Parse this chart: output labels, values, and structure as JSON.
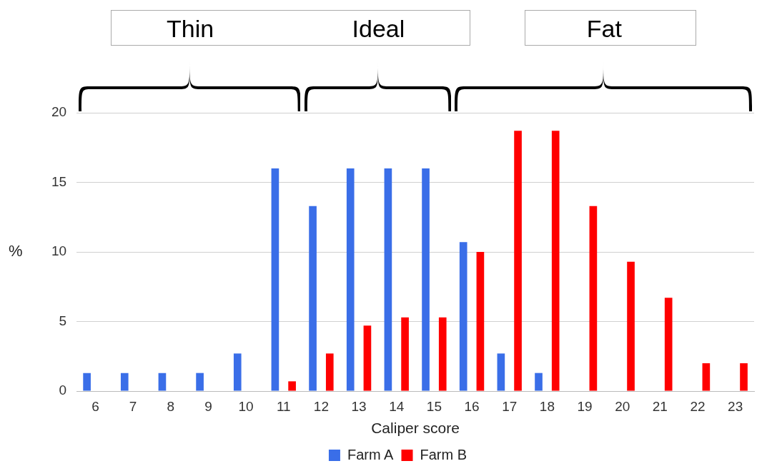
{
  "chart_data": {
    "type": "bar",
    "xlabel": "Caliper score",
    "ylabel": "%",
    "categories": [
      "6",
      "7",
      "8",
      "9",
      "10",
      "11",
      "12",
      "13",
      "14",
      "15",
      "16",
      "17",
      "18",
      "19",
      "20",
      "21",
      "22",
      "23"
    ],
    "series": [
      {
        "name": "Farm A",
        "color": "#3a6ee8",
        "values": [
          1.3,
          1.3,
          1.3,
          1.3,
          2.7,
          16,
          13.3,
          16,
          16,
          16,
          10.7,
          2.7,
          1.3,
          0,
          0,
          0,
          0,
          0
        ]
      },
      {
        "name": "Farm B",
        "color": "#ff0000",
        "values": [
          0,
          0,
          0,
          0,
          0,
          0.7,
          2.7,
          4.7,
          5.3,
          5.3,
          10,
          18.7,
          18.7,
          13.3,
          9.3,
          6.7,
          2,
          2
        ]
      }
    ],
    "ylim": [
      0,
      20
    ],
    "yticks": [
      0,
      5,
      10,
      15,
      20
    ],
    "grid": "y",
    "legend": "bottom",
    "annotations": [
      "Thin",
      "Ideal",
      "Fat"
    ]
  }
}
